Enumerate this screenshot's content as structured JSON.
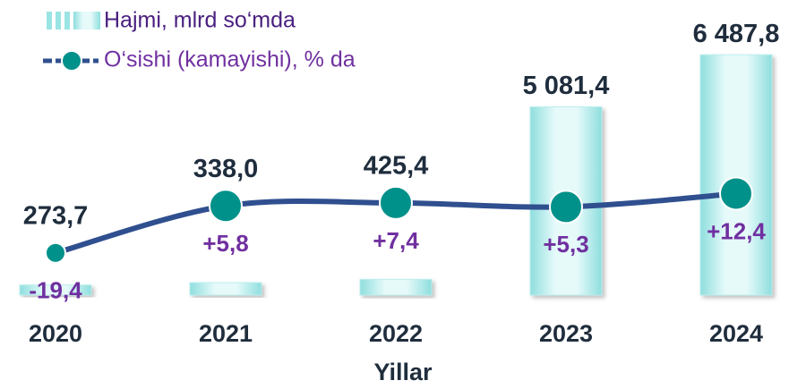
{
  "chart_data": {
    "type": "bar",
    "categories": [
      "2020",
      "2021",
      "2022",
      "2023",
      "2024"
    ],
    "series": [
      {
        "name": "Hajmi, mlrd so‘mda",
        "type": "bar",
        "color": "#bdeeee",
        "values": [
          273.7,
          338.0,
          425.4,
          5081.4,
          6487.8
        ],
        "value_labels": [
          "273,7",
          "338,0",
          "425,4",
          "5 081,4",
          "6 487,8"
        ]
      },
      {
        "name": "O‘sishi (kamayishi), % da",
        "type": "line",
        "axis": "y2",
        "color": "#2f4f8f",
        "marker_color": "#00918a",
        "values": [
          -19.4,
          5.8,
          7.4,
          5.3,
          12.4
        ],
        "value_labels": [
          "-19,4",
          "+5,8",
          "+7,4",
          "+5,3",
          "+12,4"
        ]
      }
    ],
    "xlabel": "Yillar",
    "ylim": [
      0,
      7000
    ],
    "y2lim": [
      -42,
      97
    ]
  }
}
